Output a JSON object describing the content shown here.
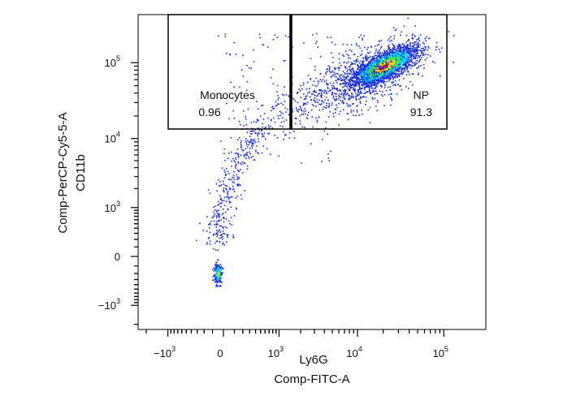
{
  "chart_data": {
    "type": "scatter",
    "plot_style": "flow-cytometry density dot plot (pseudocolor)",
    "x_axis": {
      "label": "Ly6G",
      "parameter": "Comp-FITC-A",
      "scale": "biexponential",
      "ticks": [
        {
          "value": -1000,
          "base": "−10",
          "exp": "3"
        },
        {
          "value": 0,
          "base": "0",
          "exp": ""
        },
        {
          "value": 1000,
          "base": "10",
          "exp": "3"
        },
        {
          "value": 10000,
          "base": "10",
          "exp": "4"
        },
        {
          "value": 100000,
          "base": "10",
          "exp": "5"
        }
      ]
    },
    "y_axis": {
      "label": "CD11b",
      "parameter": "Comp-PerCP-Cy5-5-A",
      "scale": "biexponential",
      "ticks": [
        {
          "value": -1000,
          "base": "−10",
          "exp": "3"
        },
        {
          "value": 0,
          "base": "0",
          "exp": ""
        },
        {
          "value": 1000,
          "base": "10",
          "exp": "3"
        },
        {
          "value": 10000,
          "base": "10",
          "exp": "4"
        },
        {
          "value": 100000,
          "base": "10",
          "exp": "5"
        }
      ]
    },
    "gates": [
      {
        "name": "Monocytes",
        "value": "0.96",
        "x_range": [
          -1800,
          1400
        ],
        "y_range": [
          8000,
          220000
        ]
      },
      {
        "name": "NP",
        "value": "91.3",
        "x_range": [
          1400,
          85000
        ],
        "y_range": [
          8000,
          220000
        ]
      }
    ],
    "populations": [
      {
        "description": "dense cluster",
        "center": [
          20000,
          90000
        ],
        "density_colors": [
          "#1a3cff",
          "#00c8ff",
          "#30e070",
          "#ffe000",
          "#ff2010"
        ]
      },
      {
        "description": "small cluster",
        "center": [
          -50,
          -200
        ]
      }
    ],
    "colors": {
      "sparse": "#1a2fe0",
      "dense_low": "#00c8ff",
      "dense_mid": "#30e070",
      "dense_high": "#ffd000",
      "densest": "#e02010",
      "gate": "#000000"
    },
    "grid": false
  }
}
